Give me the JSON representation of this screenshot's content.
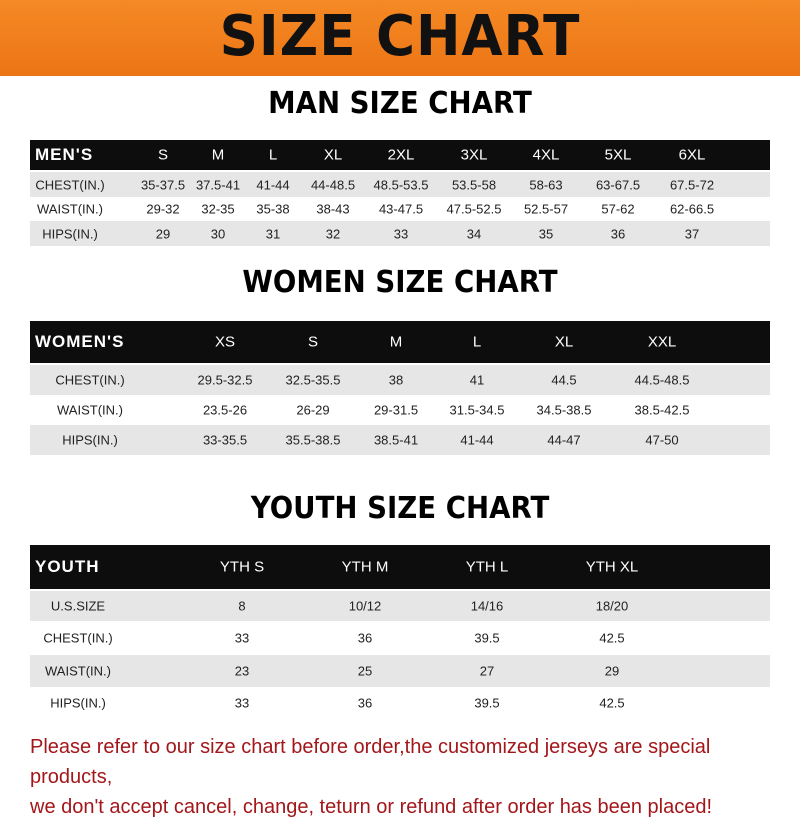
{
  "title": "SIZE CHART",
  "colors": {
    "banner": "#f07a1a",
    "header_row": "#0d0d0d",
    "footer_text": "#a3161a"
  },
  "men": {
    "title": "MAN SIZE CHART",
    "header": [
      "MEN'S",
      "S",
      "M",
      "L",
      "XL",
      "2XL",
      "3XL",
      "4XL",
      "5XL",
      "6XL"
    ],
    "rows": [
      [
        "CHEST(IN.)",
        "35-37.5",
        "37.5-41",
        "41-44",
        "44-48.5",
        "48.5-53.5",
        "53.5-58",
        "58-63",
        "63-67.5",
        "67.5-72"
      ],
      [
        "WAIST(IN.)",
        "29-32",
        "32-35",
        "35-38",
        "38-43",
        "43-47.5",
        "47.5-52.5",
        "52.5-57",
        "57-62",
        "62-66.5"
      ],
      [
        "HIPS(IN.)",
        "29",
        "30",
        "31",
        "32",
        "33",
        "34",
        "35",
        "36",
        "37"
      ]
    ]
  },
  "women": {
    "title": "WOMEN SIZE CHART",
    "header": [
      "WOMEN'S",
      "XS",
      "S",
      "M",
      "L",
      "XL",
      "XXL"
    ],
    "rows": [
      [
        "CHEST(IN.)",
        "29.5-32.5",
        "32.5-35.5",
        "38",
        "41",
        "44.5",
        "44.5-48.5"
      ],
      [
        "WAIST(IN.)",
        "23.5-26",
        "26-29",
        "29-31.5",
        "31.5-34.5",
        "34.5-38.5",
        "38.5-42.5"
      ],
      [
        "HIPS(IN.)",
        "33-35.5",
        "35.5-38.5",
        "38.5-41",
        "41-44",
        "44-47",
        "47-50"
      ]
    ]
  },
  "youth": {
    "title": "YOUTH SIZE CHART",
    "header": [
      "YOUTH",
      "YTH S",
      "YTH M",
      "YTH L",
      "YTH XL"
    ],
    "rows": [
      [
        "U.S.SIZE",
        "8",
        "10/12",
        "14/16",
        "18/20"
      ],
      [
        "CHEST(IN.)",
        "33",
        "36",
        "39.5",
        "42.5"
      ],
      [
        "WAIST(IN.)",
        "23",
        "25",
        "27",
        "29"
      ],
      [
        "HIPS(IN.)",
        "33",
        "36",
        "39.5",
        "42.5"
      ]
    ]
  },
  "footer": {
    "line1": "Please refer to our size chart before order,the customized jerseys are special products,",
    "line2": "we don't accept cancel, change, teturn or refund after order has been placed!"
  }
}
